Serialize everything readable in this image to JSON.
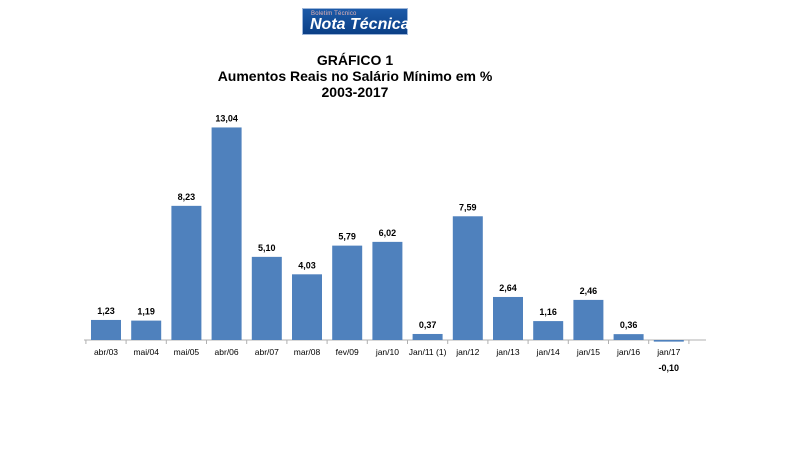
{
  "header": {
    "logo_small": "Boletim Técnico",
    "logo_text": "Nota Técnica"
  },
  "chart_data": {
    "type": "bar",
    "title_lines": [
      "GRÁFICO 1",
      "Aumentos Reais no Salário Mínimo em %",
      "2003-2017"
    ],
    "categories": [
      "abr/03",
      "mai/04",
      "mai/05",
      "abr/06",
      "abr/07",
      "mar/08",
      "fev/09",
      "jan/10",
      "Jan/11 (1)",
      "jan/12",
      "jan/13",
      "jan/14",
      "jan/15",
      "jan/16",
      "jan/17"
    ],
    "values": [
      1.23,
      1.19,
      8.23,
      13.04,
      5.1,
      4.03,
      5.79,
      6.02,
      0.37,
      7.59,
      2.64,
      1.16,
      2.46,
      0.36,
      -0.1
    ],
    "value_labels": [
      "1,23",
      "1,19",
      "8,23",
      "13,04",
      "5,10",
      "4,03",
      "5,79",
      "6,02",
      "0,37",
      "7,59",
      "2,64",
      "1,16",
      "2,46",
      "0,36",
      "-0,10"
    ],
    "xlabel": "",
    "ylabel": "",
    "ylim": [
      -0.1,
      13.04
    ],
    "grid": false,
    "colors": {
      "bar": "#4f81bd",
      "axis": "#b0b0b0"
    }
  }
}
